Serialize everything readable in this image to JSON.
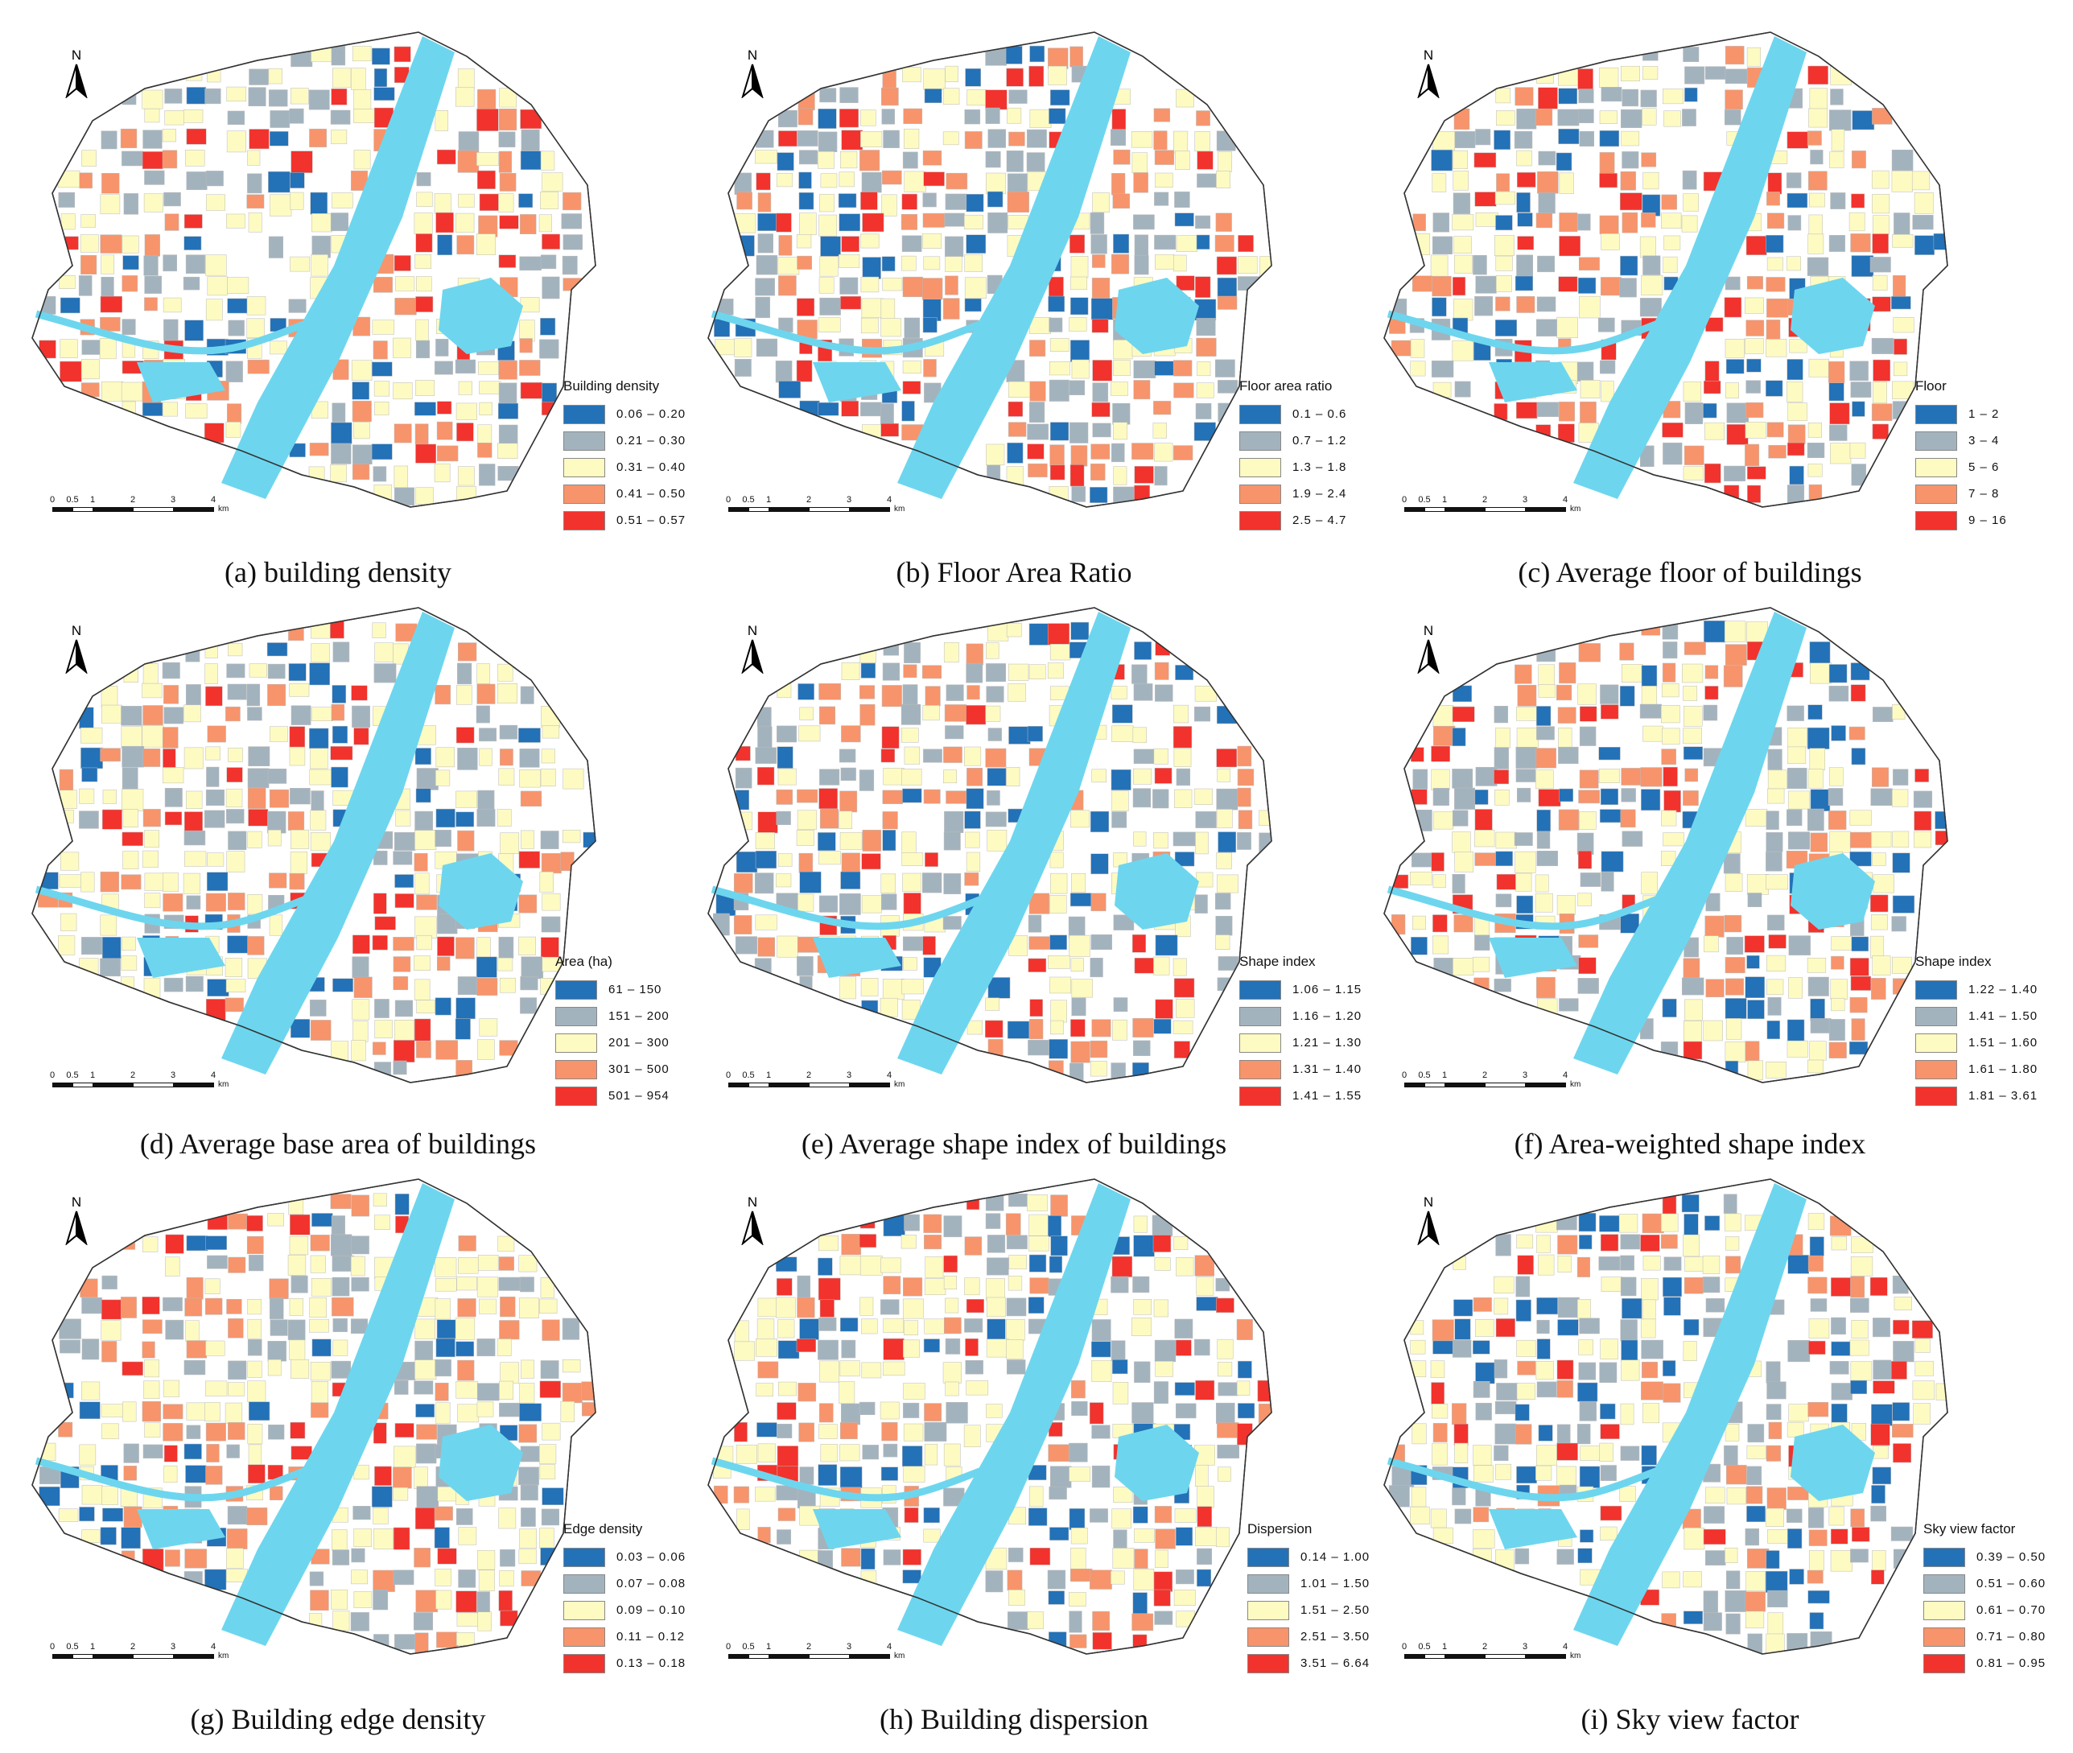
{
  "colors": {
    "class1": "#2371b7",
    "class2": "#a3b3be",
    "class3": "#fdfbc2",
    "class4": "#f7946b",
    "class5": "#f2322c",
    "river": "#6dd6ee",
    "background": "#ffffff"
  },
  "north_label": "N",
  "scale_ticks": [
    "0",
    "0.5",
    "1",
    "2",
    "3",
    "4"
  ],
  "scale_unit": "km",
  "panels": [
    {
      "caption": "(a) building density",
      "legend_title": "Building density",
      "classes": [
        "0.06 – 0.20",
        "0.21 – 0.30",
        "0.31 – 0.40",
        "0.41 – 0.50",
        "0.51 – 0.57"
      ]
    },
    {
      "caption": "(b) Floor Area Ratio",
      "legend_title": "Floor area ratio",
      "classes": [
        "0.1 – 0.6",
        "0.7 – 1.2",
        "1.3 – 1.8",
        "1.9 – 2.4",
        "2.5 – 4.7"
      ]
    },
    {
      "caption": "(c) Average floor of buildings",
      "legend_title": "Floor",
      "classes": [
        "1 – 2",
        "3 – 4",
        "5 – 6",
        "7 – 8",
        "9 – 16"
      ]
    },
    {
      "caption": "(d) Average base area of buildings",
      "legend_title": "Area (ha)",
      "classes": [
        "61 – 150",
        "151 – 200",
        "201 – 300",
        "301 – 500",
        "501 – 954"
      ]
    },
    {
      "caption": "(e) Average shape index of buildings",
      "legend_title": "Shape index",
      "classes": [
        "1.06 – 1.15",
        "1.16 – 1.20",
        "1.21 – 1.30",
        "1.31 – 1.40",
        "1.41 – 1.55"
      ]
    },
    {
      "caption": "(f) Area-weighted shape index",
      "legend_title": "Shape index",
      "classes": [
        "1.22 – 1.40",
        "1.41 – 1.50",
        "1.51 – 1.60",
        "1.61 – 1.80",
        "1.81 – 3.61"
      ]
    },
    {
      "caption": "(g) Building edge density",
      "legend_title": "Edge density",
      "classes": [
        "0.03 – 0.06",
        "0.07 – 0.08",
        "0.09 – 0.10",
        "0.11 – 0.12",
        "0.13 – 0.18"
      ]
    },
    {
      "caption": "(h) Building dispersion",
      "legend_title": "Dispersion",
      "classes": [
        "0.14 – 1.00",
        "1.01 – 1.50",
        "1.51 – 2.50",
        "2.51 – 3.50",
        "3.51 – 6.64"
      ]
    },
    {
      "caption": "(i) Sky view factor",
      "legend_title": "Sky view factor",
      "classes": [
        "0.39 – 0.50",
        "0.51 – 0.60",
        "0.61 – 0.70",
        "0.71 – 0.80",
        "0.81 – 0.95"
      ]
    }
  ]
}
